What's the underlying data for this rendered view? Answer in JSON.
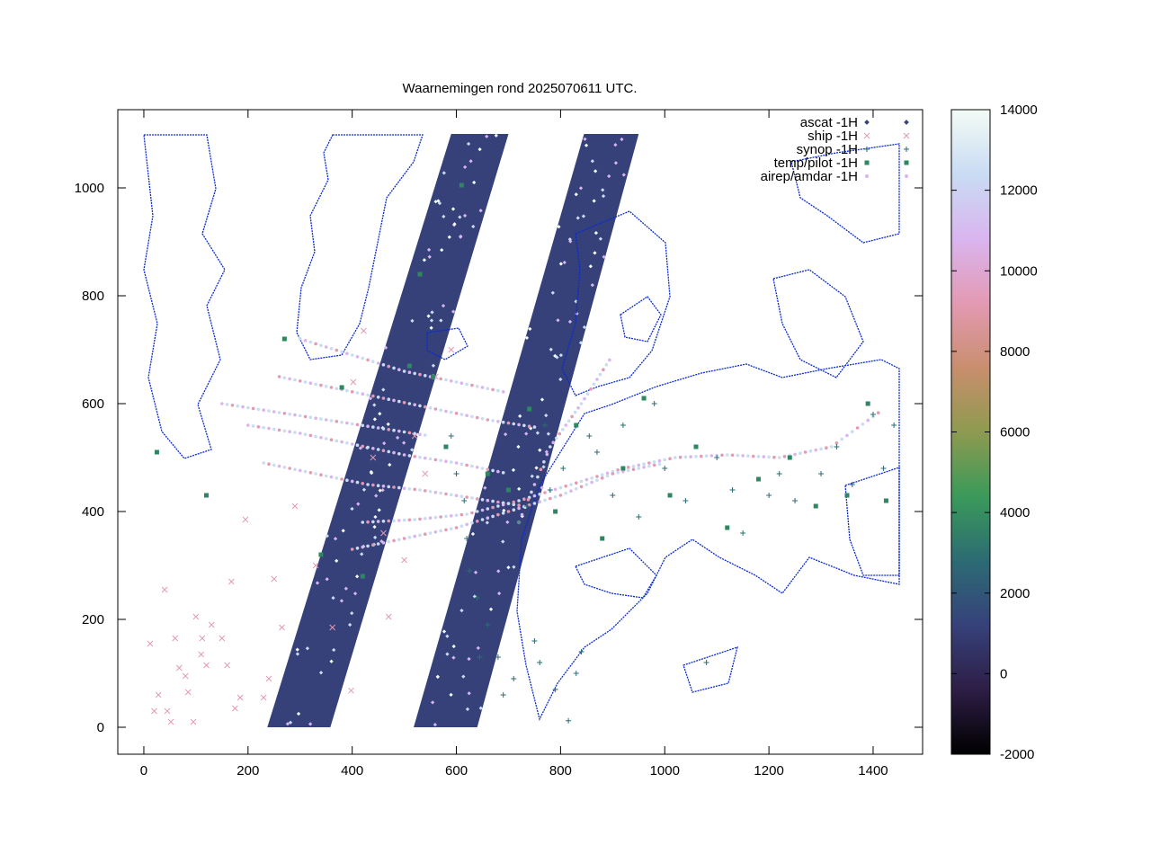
{
  "chart_data": {
    "type": "scatter",
    "title": "Waarnemingen rond 2025070611 UTC.",
    "xlabel": "",
    "ylabel": "",
    "xlim": [
      -50,
      1495
    ],
    "ylim": [
      -50,
      1145
    ],
    "x_ticks": [
      0,
      200,
      400,
      600,
      800,
      1000,
      1200,
      1400
    ],
    "y_ticks": [
      0,
      200,
      400,
      600,
      800,
      1000
    ],
    "grid": false,
    "legend_position": "top-right",
    "colorbar": {
      "min": -2000,
      "max": 14000,
      "ticks": [
        -2000,
        0,
        2000,
        4000,
        6000,
        8000,
        10000,
        12000,
        14000
      ],
      "colors": [
        "#000000",
        "#2d1e45",
        "#36417a",
        "#2c6b73",
        "#3a9a5a",
        "#8e9a4f",
        "#c98e6e",
        "#e39ab3",
        "#d9b5ef",
        "#c9dcf3",
        "#f3fbf5"
      ]
    },
    "series": [
      {
        "name": "ascat -1H",
        "marker": "diamond",
        "color": "#36417a",
        "swaths": [
          {
            "x0": 237,
            "y0": 0,
            "x1": 358,
            "y1": 0,
            "x2": 700,
            "y2": 1100,
            "x3": 590,
            "y3": 1100
          },
          {
            "x0": 518,
            "y0": 0,
            "x1": 640,
            "y1": 0,
            "x2": 950,
            "y2": 1100,
            "x3": 845,
            "y3": 1100
          }
        ]
      },
      {
        "name": "ship -1H",
        "marker": "x",
        "color": "#e39ab3",
        "points": [
          [
            12,
            155
          ],
          [
            20,
            30
          ],
          [
            28,
            60
          ],
          [
            40,
            255
          ],
          [
            45,
            30
          ],
          [
            52,
            10
          ],
          [
            60,
            165
          ],
          [
            68,
            110
          ],
          [
            80,
            95
          ],
          [
            85,
            65
          ],
          [
            95,
            10
          ],
          [
            100,
            205
          ],
          [
            110,
            135
          ],
          [
            112,
            165
          ],
          [
            120,
            115
          ],
          [
            130,
            190
          ],
          [
            150,
            165
          ],
          [
            160,
            115
          ],
          [
            168,
            270
          ],
          [
            175,
            35
          ],
          [
            185,
            55
          ],
          [
            195,
            385
          ],
          [
            230,
            55
          ],
          [
            240,
            90
          ],
          [
            250,
            275
          ],
          [
            265,
            185
          ],
          [
            290,
            410
          ],
          [
            330,
            300
          ],
          [
            362,
            185
          ],
          [
            398,
            68
          ],
          [
            402,
            640
          ],
          [
            422,
            735
          ],
          [
            440,
            500
          ],
          [
            460,
            360
          ],
          [
            470,
            205
          ],
          [
            500,
            310
          ],
          [
            520,
            540
          ],
          [
            540,
            470
          ],
          [
            560,
            650
          ],
          [
            590,
            700
          ]
        ]
      },
      {
        "name": "synop -1H",
        "marker": "plus",
        "color": "#2c6b73",
        "points": [
          [
            590,
            540
          ],
          [
            600,
            470
          ],
          [
            615,
            420
          ],
          [
            620,
            350
          ],
          [
            625,
            290
          ],
          [
            640,
            240
          ],
          [
            645,
            130
          ],
          [
            660,
            190
          ],
          [
            680,
            130
          ],
          [
            690,
            60
          ],
          [
            710,
            90
          ],
          [
            720,
            380
          ],
          [
            735,
            410
          ],
          [
            750,
            160
          ],
          [
            760,
            120
          ],
          [
            770,
            560
          ],
          [
            780,
            440
          ],
          [
            790,
            70
          ],
          [
            805,
            480
          ],
          [
            815,
            12
          ],
          [
            830,
            100
          ],
          [
            840,
            140
          ],
          [
            855,
            540
          ],
          [
            870,
            510
          ],
          [
            900,
            430
          ],
          [
            920,
            560
          ],
          [
            950,
            390
          ],
          [
            980,
            600
          ],
          [
            1000,
            480
          ],
          [
            1040,
            420
          ],
          [
            1080,
            120
          ],
          [
            1100,
            500
          ],
          [
            1130,
            440
          ],
          [
            1150,
            360
          ],
          [
            1200,
            430
          ],
          [
            1220,
            470
          ],
          [
            1250,
            420
          ],
          [
            1300,
            470
          ],
          [
            1330,
            520
          ],
          [
            1360,
            450
          ],
          [
            1400,
            580
          ],
          [
            1420,
            480
          ],
          [
            1440,
            560
          ]
        ]
      },
      {
        "name": "temp/pilot -1H",
        "marker": "square",
        "color": "#2d8760",
        "points": [
          [
            25,
            510
          ],
          [
            120,
            430
          ],
          [
            270,
            720
          ],
          [
            340,
            320
          ],
          [
            380,
            630
          ],
          [
            420,
            280
          ],
          [
            510,
            670
          ],
          [
            530,
            840
          ],
          [
            555,
            650
          ],
          [
            580,
            520
          ],
          [
            610,
            1005
          ],
          [
            660,
            470
          ],
          [
            700,
            440
          ],
          [
            740,
            590
          ],
          [
            790,
            400
          ],
          [
            830,
            560
          ],
          [
            880,
            350
          ],
          [
            920,
            480
          ],
          [
            960,
            610
          ],
          [
            1010,
            430
          ],
          [
            1060,
            520
          ],
          [
            1120,
            370
          ],
          [
            1180,
            460
          ],
          [
            1240,
            500
          ],
          [
            1290,
            410
          ],
          [
            1350,
            430
          ],
          [
            1390,
            600
          ],
          [
            1425,
            420
          ]
        ]
      },
      {
        "name": "airep/amdar -1H",
        "marker": "dot",
        "color": "#d9b5ef",
        "tracks": [
          [
            [
              200,
              560
            ],
            [
              300,
              545
            ],
            [
              400,
              525
            ],
            [
              500,
              505
            ],
            [
              600,
              490
            ],
            [
              700,
              470
            ]
          ],
          [
            [
              230,
              490
            ],
            [
              330,
              470
            ],
            [
              430,
              450
            ],
            [
              530,
              440
            ],
            [
              630,
              425
            ],
            [
              730,
              410
            ]
          ],
          [
            [
              260,
              650
            ],
            [
              360,
              630
            ],
            [
              460,
              610
            ],
            [
              560,
              590
            ],
            [
              660,
              570
            ],
            [
              760,
              555
            ]
          ],
          [
            [
              300,
              720
            ],
            [
              400,
              690
            ],
            [
              500,
              660
            ],
            [
              600,
              640
            ],
            [
              700,
              620
            ]
          ],
          [
            [
              150,
              600
            ],
            [
              250,
              585
            ],
            [
              350,
              570
            ],
            [
              450,
              555
            ],
            [
              550,
              540
            ]
          ],
          [
            [
              420,
              380
            ],
            [
              520,
              385
            ],
            [
              620,
              395
            ],
            [
              720,
              420
            ],
            [
              820,
              450
            ],
            [
              920,
              480
            ],
            [
              1020,
              500
            ],
            [
              1120,
              505
            ],
            [
              1220,
              500
            ],
            [
              1320,
              520
            ],
            [
              1420,
              590
            ]
          ],
          [
            [
              400,
              330
            ],
            [
              500,
              350
            ],
            [
              600,
              370
            ],
            [
              700,
              400
            ],
            [
              800,
              430
            ],
            [
              900,
              470
            ],
            [
              1000,
              490
            ]
          ],
          [
            [
              720,
              380
            ],
            [
              780,
              520
            ],
            [
              840,
              600
            ],
            [
              900,
              690
            ]
          ]
        ]
      }
    ]
  }
}
